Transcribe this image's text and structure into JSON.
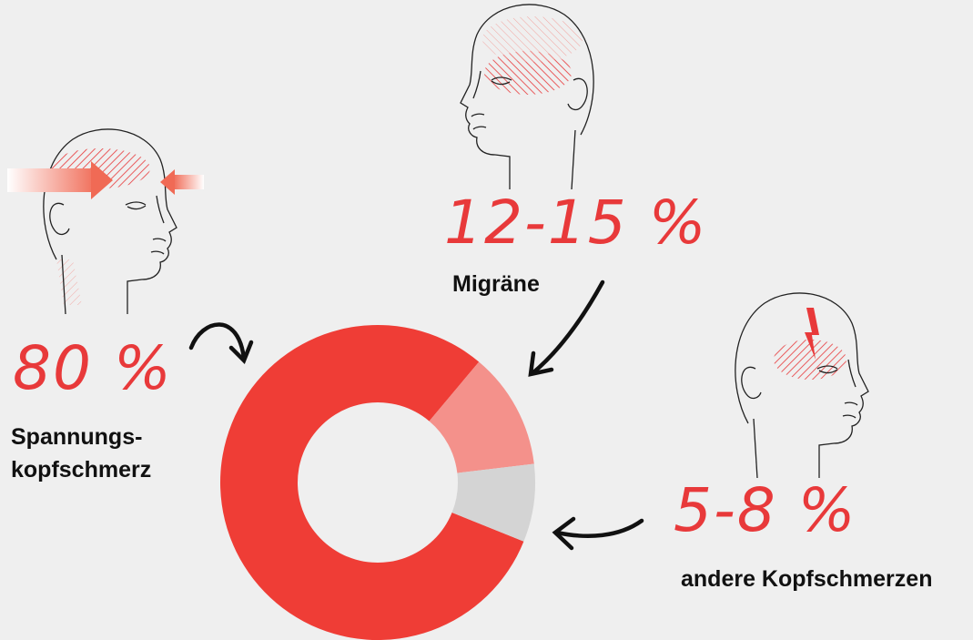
{
  "chart_data": {
    "type": "donut",
    "categories": [
      "Spannungs-\nkopfschmerz",
      "Migräne",
      "andere Kopfschmerzen"
    ],
    "values": [
      80,
      12,
      8
    ],
    "value_labels": [
      "80 %",
      "12-15 %",
      "5-8 %"
    ],
    "colors": [
      "#ef3d36",
      "#f4918b",
      "#d4d4d4"
    ]
  }
}
